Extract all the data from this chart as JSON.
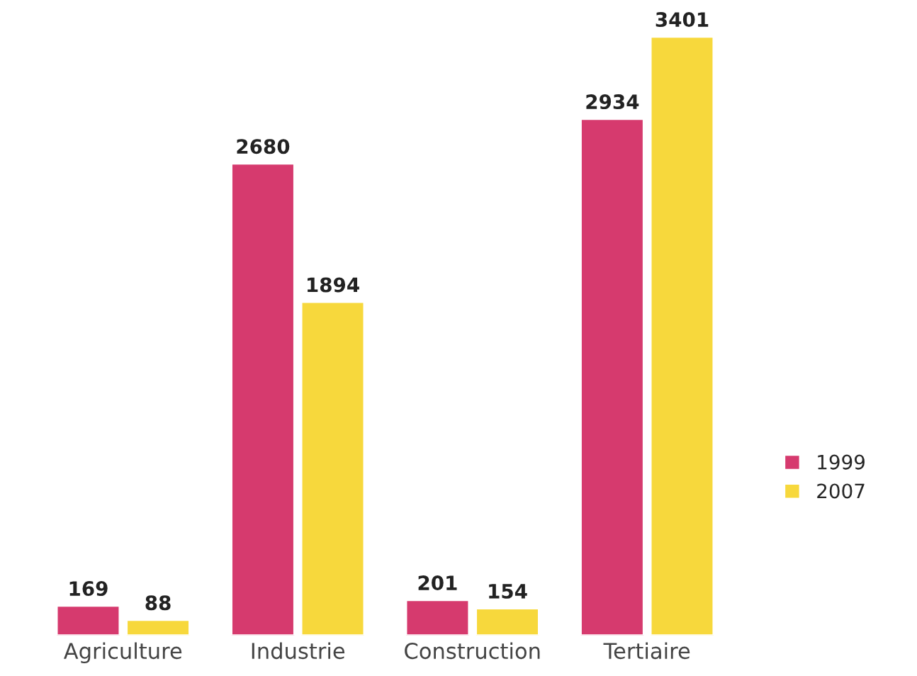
{
  "chart_data": {
    "type": "bar",
    "categories": [
      "Agriculture",
      "Industrie",
      "Construction",
      "Tertiaire"
    ],
    "series": [
      {
        "name": "1999",
        "color": "#d63a6e",
        "values": [
          169,
          2680,
          201,
          2934
        ]
      },
      {
        "name": "2007",
        "color": "#f7d83c",
        "values": [
          88,
          1894,
          154,
          3401
        ]
      }
    ],
    "data_labels": true,
    "legend": "right",
    "grid": false
  }
}
